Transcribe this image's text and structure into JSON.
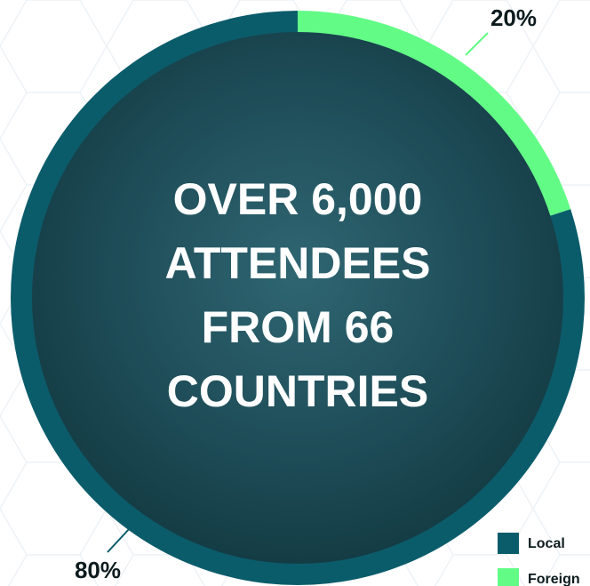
{
  "chart_data": {
    "type": "pie",
    "categories": [
      "Local",
      "Foreign"
    ],
    "values": [
      80,
      20
    ],
    "value_labels": [
      "80%",
      "20%"
    ],
    "colors": [
      "#0b5c6b",
      "#62fb86"
    ],
    "center_text": [
      "OVER 6,000",
      "ATTENDEES",
      "FROM 66",
      "COUNTRIES"
    ],
    "legend": "bottom-right"
  }
}
